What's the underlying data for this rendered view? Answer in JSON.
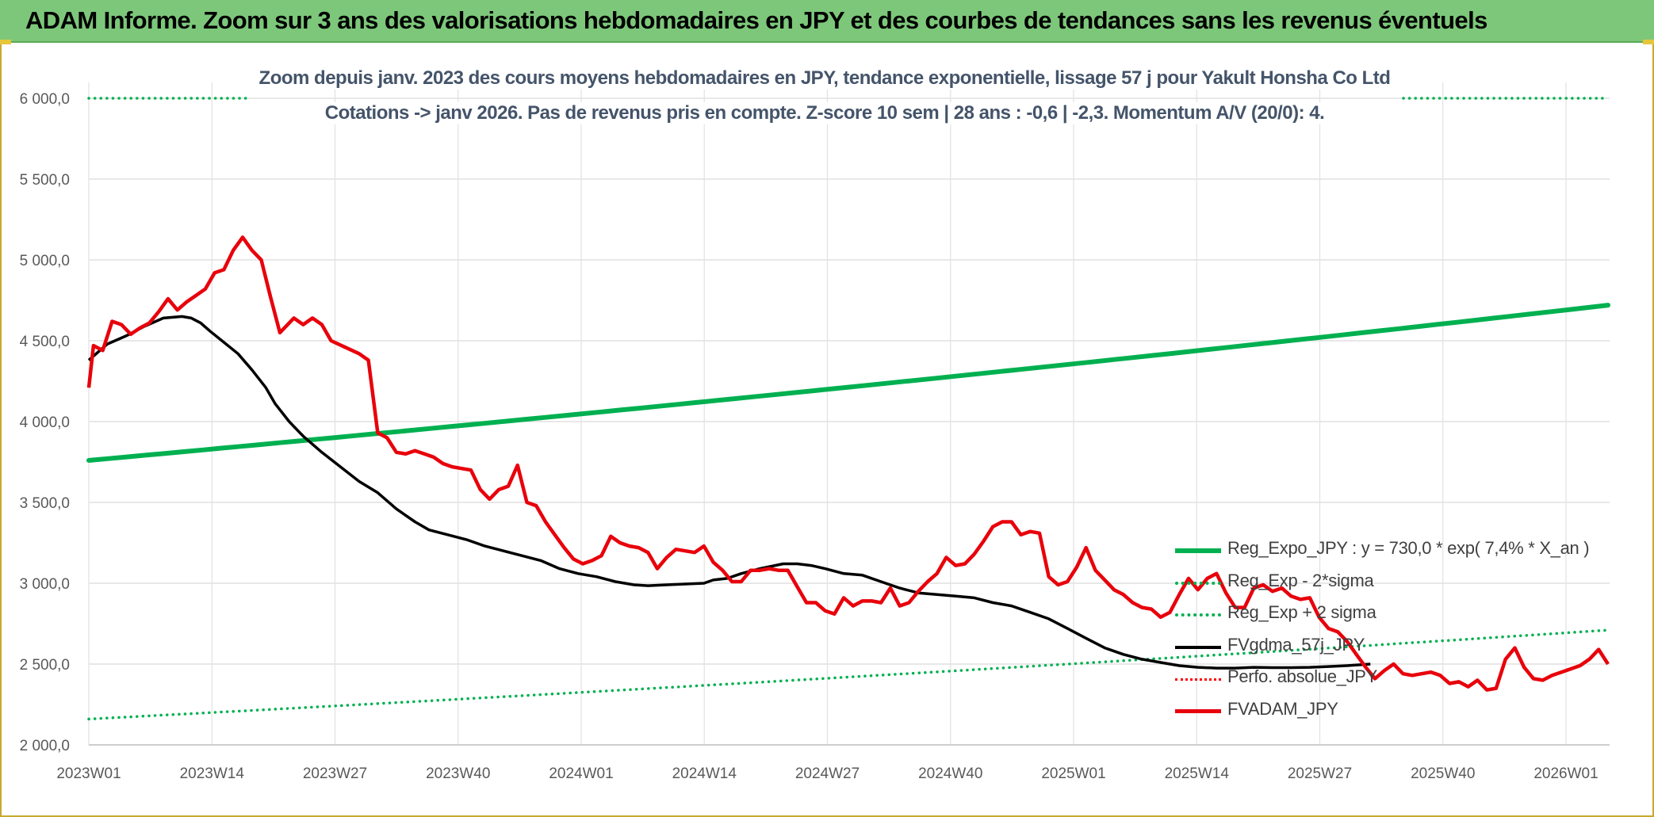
{
  "header": {
    "title": "ADAM Informe. Zoom sur 3 ans des valorisations hebdomadaires en JPY et des courbes de tendances sans les revenus éventuels"
  },
  "chart_data": {
    "type": "line",
    "title": "Zoom depuis janv. 2023 des cours moyens hebdomadaires en JPY, tendance exponentielle, lissage 57 j pour Yakult Honsha Co Ltd",
    "subtitle": "Cotations -> janv 2026. Pas de revenus pris en compte. Z-score 10 sem | 28 ans : -0,6 | -2,3. Momentum A/V (20/0): 4.",
    "xlabel": "",
    "ylabel": "",
    "ylim": [
      2000,
      6000
    ],
    "y_ticks": [
      "2 000,0",
      "2 500,0",
      "3 000,0",
      "3 500,0",
      "4 000,0",
      "4 500,0",
      "5 000,0",
      "5 500,0",
      "6 000,0"
    ],
    "y_tick_values": [
      2000,
      2500,
      3000,
      3500,
      4000,
      4500,
      5000,
      5500,
      6000
    ],
    "x_ticks": [
      "2023W01",
      "2023W14",
      "2023W27",
      "2023W40",
      "2024W01",
      "2024W14",
      "2024W27",
      "2024W40",
      "2025W01",
      "2025W14",
      "2025W27",
      "2025W40",
      "2026W01"
    ],
    "x_tick_index": [
      0,
      13,
      26,
      39,
      52,
      65,
      78,
      91,
      104,
      117,
      130,
      143,
      156
    ],
    "x_count": 162,
    "grid": true,
    "legend_position": "bottom-right",
    "series": [
      {
        "name": "Reg_Expo_JPY : y = 730,0 * exp( 7,4% *  X_an )",
        "color": "#00b050",
        "style": "solid-thick",
        "start": 3760,
        "end": 4720
      },
      {
        "name": "Reg_Exp - 2*sigma",
        "color": "#00b050",
        "style": "dotted",
        "start": 2160,
        "end": 2710
      },
      {
        "name": "Reg_Exp + 2 sigma",
        "color": "#00b050",
        "style": "dotted",
        "start": 6000,
        "end": 6000
      },
      {
        "name": "FVgdma_57j_JPY",
        "color": "#000000",
        "style": "solid",
        "points": [
          [
            0,
            4380
          ],
          [
            4,
            4480
          ],
          [
            8,
            4530
          ],
          [
            12,
            4590
          ],
          [
            16,
            4640
          ],
          [
            20,
            4650
          ],
          [
            22,
            4640
          ],
          [
            24,
            4610
          ],
          [
            26,
            4560
          ],
          [
            29,
            4490
          ],
          [
            32,
            4420
          ],
          [
            35,
            4320
          ],
          [
            38,
            4210
          ],
          [
            40,
            4110
          ],
          [
            43,
            4000
          ],
          [
            46,
            3910
          ],
          [
            50,
            3810
          ],
          [
            54,
            3720
          ],
          [
            58,
            3630
          ],
          [
            62,
            3560
          ],
          [
            66,
            3460
          ],
          [
            70,
            3380
          ],
          [
            73,
            3330
          ],
          [
            77,
            3300
          ],
          [
            81,
            3270
          ],
          [
            85,
            3230
          ],
          [
            89,
            3200
          ],
          [
            93,
            3170
          ],
          [
            97,
            3140
          ],
          [
            101,
            3090
          ],
          [
            105,
            3060
          ],
          [
            109,
            3040
          ],
          [
            113,
            3010
          ],
          [
            117,
            2990
          ],
          [
            120,
            2985
          ],
          [
            124,
            2990
          ],
          [
            128,
            2995
          ],
          [
            132,
            3000
          ],
          [
            134,
            3020
          ],
          [
            137,
            3030
          ],
          [
            140,
            3060
          ],
          [
            144,
            3090
          ],
          [
            149,
            3120
          ],
          [
            152,
            3120
          ],
          [
            155,
            3110
          ],
          [
            158,
            3090
          ],
          [
            162,
            3060
          ],
          [
            166,
            3050
          ],
          [
            170,
            3010
          ],
          [
            174,
            2970
          ],
          [
            178,
            2940
          ],
          [
            182,
            2930
          ],
          [
            186,
            2920
          ],
          [
            190,
            2910
          ],
          [
            194,
            2880
          ],
          [
            198,
            2860
          ],
          [
            202,
            2820
          ],
          [
            206,
            2780
          ],
          [
            210,
            2720
          ],
          [
            214,
            2660
          ],
          [
            218,
            2600
          ],
          [
            222,
            2560
          ],
          [
            226,
            2530
          ],
          [
            230,
            2510
          ],
          [
            234,
            2490
          ],
          [
            238,
            2480
          ],
          [
            242,
            2475
          ],
          [
            246,
            2475
          ],
          [
            250,
            2480
          ],
          [
            254,
            2478
          ],
          [
            258,
            2478
          ],
          [
            262,
            2480
          ],
          [
            266,
            2485
          ],
          [
            270,
            2490
          ],
          [
            275,
            2500
          ]
        ]
      },
      {
        "name": "Perfo. absolue_JPY",
        "color": "#ff0000",
        "style": "dotted",
        "points": []
      },
      {
        "name": "FVADAM_JPY",
        "color": "#e8000b",
        "style": "solid-thick",
        "points": [
          [
            0,
            4210
          ],
          [
            1,
            4470
          ],
          [
            3,
            4440
          ],
          [
            5,
            4620
          ],
          [
            7,
            4600
          ],
          [
            9,
            4540
          ],
          [
            11,
            4580
          ],
          [
            13,
            4610
          ],
          [
            15,
            4680
          ],
          [
            17,
            4760
          ],
          [
            19,
            4690
          ],
          [
            21,
            4740
          ],
          [
            23,
            4780
          ],
          [
            25,
            4820
          ],
          [
            27,
            4920
          ],
          [
            29,
            4940
          ],
          [
            31,
            5060
          ],
          [
            33,
            5140
          ],
          [
            35,
            5060
          ],
          [
            37,
            5000
          ],
          [
            39,
            4770
          ],
          [
            41,
            4550
          ],
          [
            44,
            4640
          ],
          [
            46,
            4600
          ],
          [
            48,
            4640
          ],
          [
            50,
            4600
          ],
          [
            52,
            4500
          ],
          [
            55,
            4460
          ],
          [
            58,
            4420
          ],
          [
            60,
            4380
          ],
          [
            62,
            3930
          ],
          [
            64,
            3900
          ],
          [
            66,
            3810
          ],
          [
            68,
            3800
          ],
          [
            70,
            3820
          ],
          [
            72,
            3800
          ],
          [
            74,
            3780
          ],
          [
            76,
            3740
          ],
          [
            78,
            3720
          ],
          [
            80,
            3710
          ],
          [
            82,
            3700
          ],
          [
            84,
            3580
          ],
          [
            86,
            3520
          ],
          [
            88,
            3580
          ],
          [
            90,
            3600
          ],
          [
            92,
            3730
          ],
          [
            94,
            3500
          ],
          [
            96,
            3480
          ],
          [
            98,
            3380
          ],
          [
            100,
            3300
          ],
          [
            102,
            3220
          ],
          [
            104,
            3150
          ],
          [
            106,
            3120
          ],
          [
            108,
            3140
          ],
          [
            110,
            3170
          ],
          [
            112,
            3290
          ],
          [
            114,
            3250
          ],
          [
            116,
            3230
          ],
          [
            118,
            3220
          ],
          [
            120,
            3190
          ],
          [
            122,
            3090
          ],
          [
            124,
            3160
          ],
          [
            126,
            3210
          ],
          [
            128,
            3200
          ],
          [
            130,
            3190
          ],
          [
            132,
            3230
          ],
          [
            134,
            3130
          ],
          [
            136,
            3080
          ],
          [
            138,
            3010
          ],
          [
            140,
            3010
          ],
          [
            142,
            3080
          ],
          [
            144,
            3080
          ],
          [
            146,
            3090
          ],
          [
            148,
            3080
          ],
          [
            150,
            3080
          ],
          [
            152,
            2980
          ],
          [
            154,
            2880
          ],
          [
            156,
            2880
          ],
          [
            158,
            2830
          ],
          [
            160,
            2810
          ],
          [
            162,
            2910
          ],
          [
            164,
            2860
          ],
          [
            166,
            2890
          ],
          [
            168,
            2890
          ],
          [
            170,
            2880
          ],
          [
            172,
            2970
          ],
          [
            174,
            2860
          ],
          [
            176,
            2880
          ],
          [
            178,
            2950
          ],
          [
            180,
            3010
          ],
          [
            182,
            3060
          ],
          [
            184,
            3160
          ],
          [
            186,
            3110
          ],
          [
            188,
            3120
          ],
          [
            190,
            3180
          ],
          [
            192,
            3260
          ],
          [
            194,
            3350
          ],
          [
            196,
            3380
          ],
          [
            198,
            3380
          ],
          [
            200,
            3300
          ],
          [
            202,
            3320
          ],
          [
            204,
            3310
          ],
          [
            206,
            3040
          ],
          [
            208,
            2990
          ],
          [
            210,
            3010
          ],
          [
            212,
            3100
          ],
          [
            214,
            3220
          ],
          [
            216,
            3080
          ],
          [
            218,
            3020
          ],
          [
            220,
            2960
          ],
          [
            222,
            2930
          ],
          [
            224,
            2880
          ],
          [
            226,
            2850
          ],
          [
            228,
            2840
          ],
          [
            230,
            2790
          ],
          [
            232,
            2820
          ],
          [
            234,
            2930
          ],
          [
            236,
            3030
          ],
          [
            238,
            2960
          ],
          [
            240,
            3030
          ],
          [
            242,
            3060
          ],
          [
            244,
            2940
          ],
          [
            246,
            2850
          ],
          [
            248,
            2850
          ],
          [
            250,
            2970
          ],
          [
            252,
            2990
          ],
          [
            254,
            2950
          ],
          [
            256,
            2970
          ],
          [
            258,
            2920
          ],
          [
            260,
            2900
          ],
          [
            262,
            2910
          ],
          [
            264,
            2790
          ],
          [
            266,
            2720
          ],
          [
            268,
            2700
          ],
          [
            270,
            2640
          ],
          [
            272,
            2560
          ],
          [
            274,
            2480
          ],
          [
            276,
            2410
          ],
          [
            278,
            2460
          ],
          [
            280,
            2500
          ],
          [
            282,
            2440
          ],
          [
            284,
            2430
          ],
          [
            286,
            2440
          ],
          [
            288,
            2450
          ],
          [
            290,
            2430
          ],
          [
            292,
            2380
          ],
          [
            294,
            2390
          ],
          [
            296,
            2360
          ],
          [
            298,
            2400
          ],
          [
            300,
            2340
          ],
          [
            302,
            2350
          ],
          [
            304,
            2530
          ],
          [
            306,
            2600
          ],
          [
            308,
            2480
          ],
          [
            310,
            2410
          ],
          [
            312,
            2400
          ],
          [
            314,
            2430
          ],
          [
            316,
            2450
          ],
          [
            318,
            2470
          ],
          [
            320,
            2490
          ],
          [
            322,
            2530
          ],
          [
            324,
            2590
          ],
          [
            326,
            2500
          ]
        ]
      }
    ]
  }
}
